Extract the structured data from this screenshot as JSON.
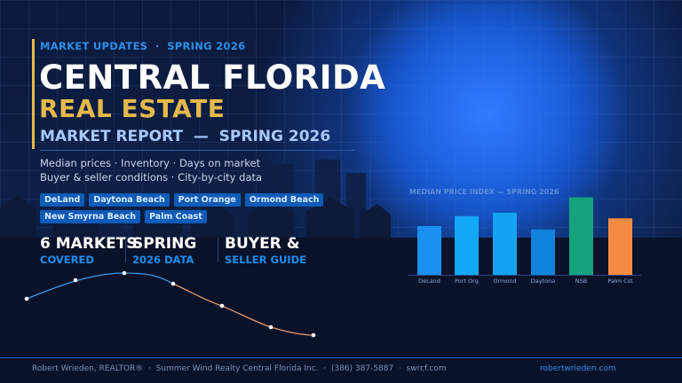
{
  "header": {
    "kicker": "MARKET UPDATES  ·  SPRING 2026",
    "title_line1": "CENTRAL FLORIDA",
    "title_line2": "REAL ESTATE",
    "title_line3": "MARKET REPORT  —  SPRING 2026"
  },
  "subtitle": {
    "line1": "Median prices · Inventory · Days on market",
    "line2": "Buyer & seller conditions · City-by-city data"
  },
  "tags": [
    "DeLand",
    "Daytona Beach",
    "Port Orange",
    "Ormond Beach",
    "New Smyrna Beach",
    "Palm Coast"
  ],
  "stats": [
    {
      "big": "6 MARKETS",
      "small": "COVERED"
    },
    {
      "big": "SPRING",
      "small": "2026 DATA"
    },
    {
      "big": "BUYER &",
      "small": "SELLER GUIDE"
    }
  ],
  "chart_data": {
    "type": "bar",
    "title": "MEDIAN PRICE INDEX — SPRING 2026",
    "categories": [
      "DeLand",
      "Port Org",
      "Ormond",
      "Daytona",
      "NSB",
      "Palm Cst"
    ],
    "values": [
      44,
      53,
      56,
      41,
      70,
      51
    ],
    "colors": [
      "#1a90f0",
      "#13a8f5",
      "#12a4f2",
      "#0f82dc",
      "#14a37c",
      "#f58a42"
    ],
    "ylim": [
      0,
      80
    ],
    "grid": false
  },
  "footer": {
    "left": "Robert Wrieden, REALTOR®  ·  Summer Wind Realty Central Florida Inc.  ·  (386) 387-5887  ·  swrcf.com",
    "right": "robertwrieden.com"
  },
  "colors": {
    "gold": "#e5b84a",
    "accent": "#2d8fe8",
    "background": "#0b1733"
  }
}
